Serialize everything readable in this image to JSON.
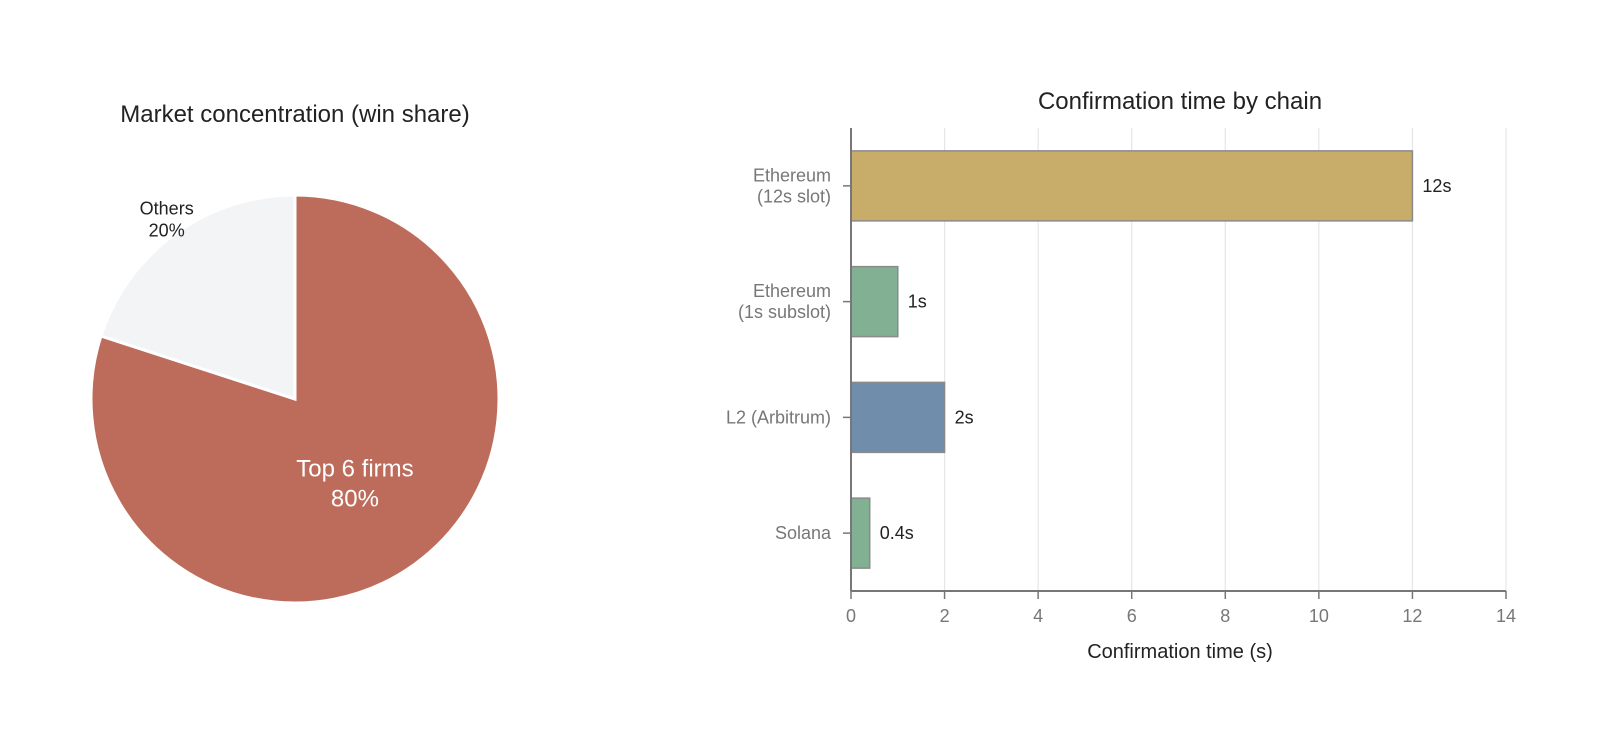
{
  "colors": {
    "top6": "#bd6c5b",
    "others": "#f3f4f6",
    "eth_slot": "#c8ad6a",
    "eth_subslot": "#82b092",
    "arbitrum": "#708dab",
    "solana": "#82b092",
    "axis": "#777777",
    "grid": "#e6e6e6"
  },
  "chart_data": [
    {
      "type": "pie",
      "title": "Market concentration (win share)",
      "slices": [
        {
          "label": "Top 6 firms",
          "value": 80,
          "display": "80%",
          "color": "#bd6c5b"
        },
        {
          "label": "Others",
          "value": 20,
          "display": "20%",
          "color": "#f3f4f6"
        }
      ]
    },
    {
      "type": "bar",
      "orientation": "horizontal",
      "title": "Confirmation time by chain",
      "xlabel": "Confirmation time (s)",
      "ylabel": "",
      "xlim": [
        0,
        14
      ],
      "xticks": [
        0,
        2,
        4,
        6,
        8,
        10,
        12,
        14
      ],
      "grid": true,
      "categories": [
        {
          "lines": [
            "Ethereum",
            "(12s slot)"
          ],
          "value": 12,
          "display": "12s",
          "color": "#c8ad6a"
        },
        {
          "lines": [
            "Ethereum",
            "(1s subslot)"
          ],
          "value": 1,
          "display": "1s",
          "color": "#82b092"
        },
        {
          "lines": [
            "L2 (Arbitrum)"
          ],
          "value": 2,
          "display": "2s",
          "color": "#708dab"
        },
        {
          "lines": [
            "Solana"
          ],
          "value": 0.4,
          "display": "0.4s",
          "color": "#82b092"
        }
      ]
    }
  ]
}
